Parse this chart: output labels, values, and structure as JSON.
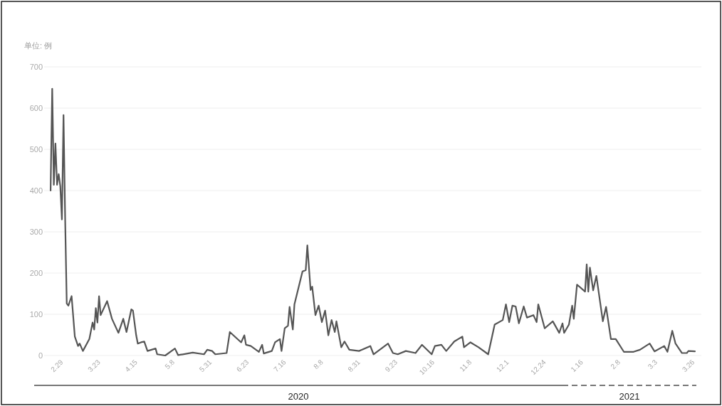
{
  "chart_data": {
    "type": "line",
    "ylabel": "单位: 例",
    "color": "#555555",
    "x": [
      "2020-02-21",
      "2020-02-22",
      "2020-02-23",
      "2020-02-24",
      "2020-02-25",
      "2020-02-26",
      "2020-02-27",
      "2020-02-28",
      "2020-02-29",
      "2020-03-01",
      "2020-03-02",
      "2020-03-03",
      "2020-03-05",
      "2020-03-07",
      "2020-03-09",
      "2020-03-10",
      "2020-03-12",
      "2020-03-16",
      "2020-03-18",
      "2020-03-19",
      "2020-03-20",
      "2020-03-21",
      "2020-03-22",
      "2020-03-23",
      "2020-03-27",
      "2020-03-30",
      "2020-04-03",
      "2020-04-06",
      "2020-04-08",
      "2020-04-11",
      "2020-04-12",
      "2020-04-14",
      "2020-04-15",
      "2020-04-17",
      "2020-04-19",
      "2020-04-21",
      "2020-04-26",
      "2020-04-27",
      "2020-05-02",
      "2020-05-08",
      "2020-05-10",
      "2020-05-19",
      "2020-05-26",
      "2020-05-28",
      "2020-05-31",
      "2020-06-02",
      "2020-06-09",
      "2020-06-11",
      "2020-06-18",
      "2020-06-20",
      "2020-06-21",
      "2020-06-24",
      "2020-06-29",
      "2020-07-01",
      "2020-07-02",
      "2020-07-07",
      "2020-07-09",
      "2020-07-12",
      "2020-07-13",
      "2020-07-15",
      "2020-07-17",
      "2020-07-18",
      "2020-07-20",
      "2020-07-21",
      "2020-07-26",
      "2020-07-28",
      "2020-07-29",
      "2020-07-31",
      "2020-08-01",
      "2020-08-03",
      "2020-08-05",
      "2020-08-07",
      "2020-08-09",
      "2020-08-11",
      "2020-08-13",
      "2020-08-15",
      "2020-08-16",
      "2020-08-19",
      "2020-08-21",
      "2020-08-24",
      "2020-08-30",
      "2020-09-06",
      "2020-09-08",
      "2020-09-17",
      "2020-09-20",
      "2020-09-23",
      "2020-09-28",
      "2020-10-04",
      "2020-10-08",
      "2020-10-14",
      "2020-10-16",
      "2020-10-20",
      "2020-10-23",
      "2020-10-28",
      "2020-11-02",
      "2020-11-03",
      "2020-11-07",
      "2020-11-12",
      "2020-11-18",
      "2020-11-22",
      "2020-11-27",
      "2020-11-29",
      "2020-12-01",
      "2020-12-03",
      "2020-12-05",
      "2020-12-07",
      "2020-12-10",
      "2020-12-12",
      "2020-12-16",
      "2020-12-18",
      "2020-12-19",
      "2020-12-23",
      "2020-12-28",
      "2021-01-01",
      "2021-01-03",
      "2021-01-04",
      "2021-01-07",
      "2021-01-09",
      "2021-01-10",
      "2021-01-12",
      "2021-01-17",
      "2021-01-18",
      "2021-01-19",
      "2021-01-20",
      "2021-01-22",
      "2021-01-24",
      "2021-01-28",
      "2021-01-30",
      "2021-02-02",
      "2021-02-05",
      "2021-02-10",
      "2021-02-16",
      "2021-02-20",
      "2021-02-26",
      "2021-03-01",
      "2021-03-07",
      "2021-03-09",
      "2021-03-12",
      "2021-03-14",
      "2021-03-18",
      "2021-03-21",
      "2021-03-22",
      "2021-03-26"
    ],
    "values": [
      400,
      647,
      414,
      514,
      414,
      440,
      411,
      330,
      583,
      333,
      126,
      121,
      144,
      46,
      23,
      29,
      11,
      40,
      80,
      63,
      115,
      80,
      144,
      98,
      132,
      89,
      55,
      89,
      57,
      112,
      109,
      49,
      29,
      32,
      34,
      11,
      17,
      3,
      0,
      17,
      1,
      7,
      3,
      14,
      11,
      3,
      6,
      57,
      32,
      49,
      26,
      23,
      9,
      26,
      5,
      11,
      32,
      40,
      11,
      66,
      72,
      118,
      63,
      124,
      204,
      207,
      267,
      159,
      167,
      98,
      121,
      81,
      109,
      49,
      86,
      57,
      83,
      20,
      34,
      14,
      11,
      23,
      3,
      29,
      6,
      3,
      11,
      6,
      26,
      3,
      23,
      26,
      11,
      34,
      46,
      20,
      32,
      20,
      3,
      75,
      86,
      124,
      81,
      121,
      119,
      78,
      119,
      92,
      98,
      81,
      124,
      66,
      83,
      55,
      78,
      55,
      75,
      121,
      89,
      172,
      155,
      221,
      155,
      213,
      158,
      193,
      83,
      118,
      40,
      40,
      9,
      9,
      14,
      29,
      10,
      23,
      9,
      60,
      29,
      6,
      6,
      11,
      10
    ],
    "xlim": [
      "2020-02-17",
      "2021-03-30"
    ],
    "xticks": [
      {
        "value": "2020-02-29",
        "label": "2.29"
      },
      {
        "value": "2020-03-23",
        "label": "3.23"
      },
      {
        "value": "2020-04-15",
        "label": "4.15"
      },
      {
        "value": "2020-05-08",
        "label": "5.8"
      },
      {
        "value": "2020-05-31",
        "label": "5.31"
      },
      {
        "value": "2020-06-23",
        "label": "6.23"
      },
      {
        "value": "2020-07-16",
        "label": "7.16"
      },
      {
        "value": "2020-08-08",
        "label": "8.8"
      },
      {
        "value": "2020-08-31",
        "label": "8.31"
      },
      {
        "value": "2020-09-23",
        "label": "9.23"
      },
      {
        "value": "2020-10-16",
        "label": "10.16"
      },
      {
        "value": "2020-11-08",
        "label": "11.8"
      },
      {
        "value": "2020-12-01",
        "label": "12.1"
      },
      {
        "value": "2020-12-24",
        "label": "12.24"
      },
      {
        "value": "2021-01-16",
        "label": "1.16"
      },
      {
        "value": "2021-02-08",
        "label": "2.8"
      },
      {
        "value": "2021-03-03",
        "label": "3.3"
      },
      {
        "value": "2021-03-26",
        "label": "3.26"
      }
    ],
    "ylim": [
      0,
      700
    ],
    "yticks": [
      0,
      100,
      200,
      300,
      400,
      500,
      600,
      700
    ],
    "grid": "y",
    "annotations": [
      "2020",
      "2021"
    ]
  }
}
